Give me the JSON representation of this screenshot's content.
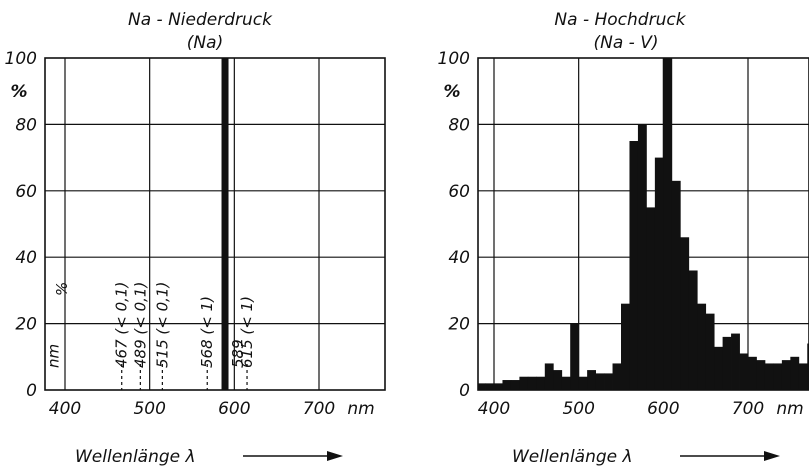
{
  "chart_data": [
    {
      "type": "bar",
      "title": "Na - Niederdruck",
      "subtitle": "(Na)",
      "ylabel": "%",
      "xlabel": "Wellenlänge λ",
      "x_unit": "nm",
      "xlim": [
        380,
        780
      ],
      "ylim": [
        0,
        100
      ],
      "x_ticks": [
        400,
        500,
        600,
        700
      ],
      "x_tick_labels": [
        "400",
        "500",
        "600",
        "700"
      ],
      "y_ticks": [
        0,
        20,
        40,
        60,
        80,
        100
      ],
      "grid": true,
      "lines": [
        {
          "x": 589,
          "value": 100,
          "label": "589"
        }
      ],
      "annotation_headers": [
        "nm",
        "%"
      ],
      "annotations": [
        {
          "nm": "467",
          "percent": "(< 0,1)",
          "x": 467
        },
        {
          "nm": "489",
          "percent": "(< 0,1)",
          "x": 489
        },
        {
          "nm": "515",
          "percent": "(< 0,1)",
          "x": 515
        },
        {
          "nm": "568",
          "percent": "(< 1)",
          "x": 568
        },
        {
          "nm": "615",
          "percent": "(< 1)",
          "x": 615
        }
      ]
    },
    {
      "type": "bar",
      "title": "Na - Hochdruck",
      "subtitle": "(Na - V)",
      "ylabel": "%",
      "xlabel": "Wellenlänge λ",
      "x_unit": "nm",
      "xlim": [
        380,
        780
      ],
      "ylim": [
        0,
        100
      ],
      "x_ticks": [
        400,
        500,
        600,
        700
      ],
      "x_tick_labels": [
        "400",
        "500",
        "600",
        "700"
      ],
      "y_ticks": [
        0,
        20,
        40,
        60,
        80,
        100
      ],
      "grid": true,
      "bin_width_nm": 10,
      "bins_start_nm": [
        380,
        390,
        400,
        410,
        420,
        430,
        440,
        450,
        460,
        470,
        480,
        490,
        500,
        510,
        520,
        530,
        540,
        550,
        560,
        570,
        580,
        590,
        600,
        610,
        620,
        630,
        640,
        650,
        660,
        670,
        680,
        690,
        700,
        710,
        720,
        730,
        740,
        750,
        760,
        770
      ],
      "values": [
        2,
        2,
        2,
        3,
        3,
        4,
        4,
        4,
        8,
        6,
        4,
        20,
        4,
        6,
        5,
        5,
        8,
        26,
        75,
        80,
        55,
        70,
        100,
        63,
        46,
        36,
        26,
        23,
        13,
        16,
        17,
        11,
        10,
        9,
        8,
        8,
        9,
        10,
        8,
        14
      ]
    }
  ]
}
